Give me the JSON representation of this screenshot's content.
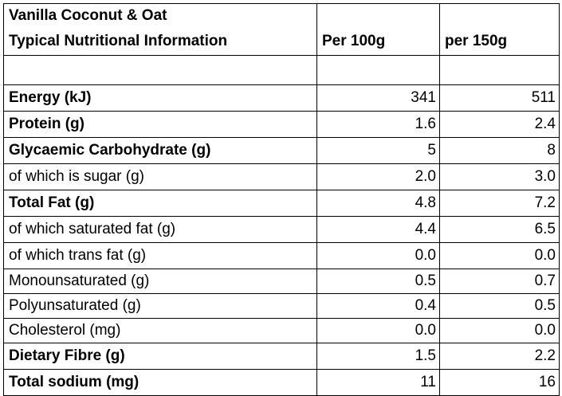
{
  "table": {
    "product_name": "Vanilla Coconut & Oat",
    "subtitle": "Typical Nutritional Information",
    "col_per100": "Per 100g",
    "col_per150": "per 150g",
    "rows": [
      {
        "label": "Energy (kJ)",
        "per100": "341",
        "per150": "511",
        "bold": true
      },
      {
        "label": "Protein (g)",
        "per100": "1.6",
        "per150": "2.4",
        "bold": true
      },
      {
        "label": "Glycaemic Carbohydrate (g)",
        "per100": "5",
        "per150": "8",
        "bold": true
      },
      {
        "label": "of which is sugar (g)",
        "per100": "2.0",
        "per150": "3.0",
        "bold": false
      },
      {
        "label": "Total Fat (g)",
        "per100": "4.8",
        "per150": "7.2",
        "bold": true
      },
      {
        "label": "of which saturated fat (g)",
        "per100": "4.4",
        "per150": "6.5",
        "bold": false
      },
      {
        "label": "of which trans fat (g)",
        "per100": "0.0",
        "per150": "0.0",
        "bold": false
      },
      {
        "label": "Monounsaturated (g)",
        "per100": "0.5",
        "per150": "0.7",
        "bold": false
      },
      {
        "label": "Polyunsaturated (g)",
        "per100": "0.4",
        "per150": "0.5",
        "bold": false
      },
      {
        "label": "Cholesterol (mg)",
        "per100": "0.0",
        "per150": "0.0",
        "bold": false
      },
      {
        "label": "Dietary Fibre (g)",
        "per100": "1.5",
        "per150": "2.2",
        "bold": true
      },
      {
        "label": "Total sodium (mg)",
        "per100": "11",
        "per150": "16",
        "bold": true
      }
    ]
  }
}
